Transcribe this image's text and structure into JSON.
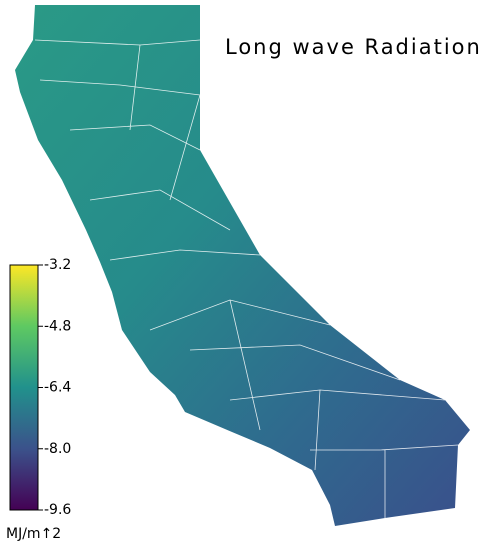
{
  "map": {
    "title": "Long wave Radiation",
    "colorbar": {
      "lim": [
        -9.6,
        -3.2
      ],
      "ticks": [
        -3.2,
        -4.8,
        -6.4,
        {
          "value": -8,
          "label": "-8.0"
        },
        -9.6
      ],
      "unit": "MJ/m↑2",
      "colormap": [
        "#440154",
        "#3b528b",
        "#21918c",
        "#5ec962",
        "#fde725"
      ]
    }
  }
}
